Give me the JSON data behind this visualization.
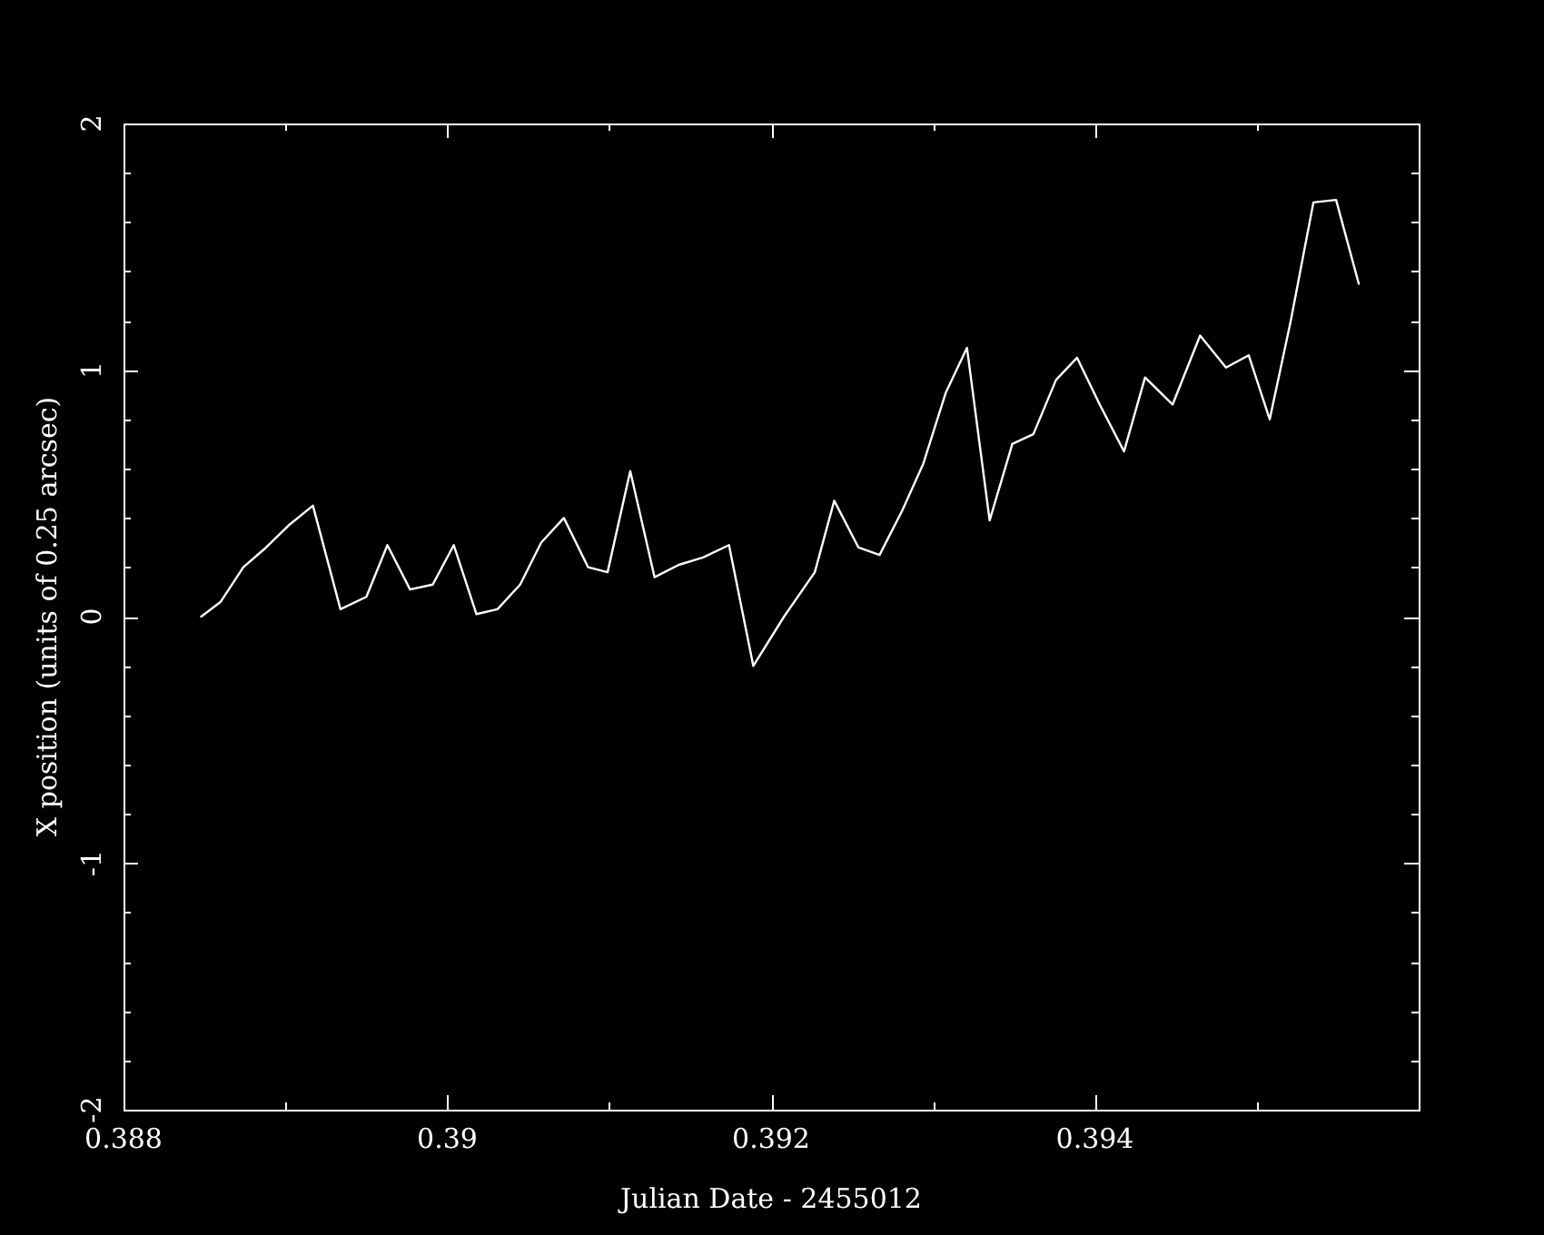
{
  "chart_data": {
    "type": "line",
    "xlabel": "Julian Date - 2455012",
    "ylabel": "X position (units of 0.25 arcsec)",
    "x": [
      0.38848,
      0.3886,
      0.38874,
      0.38888,
      0.38902,
      0.38917,
      0.38934,
      0.3895,
      0.38963,
      0.38977,
      0.38991,
      0.39004,
      0.39018,
      0.39031,
      0.39045,
      0.39058,
      0.39072,
      0.39087,
      0.39099,
      0.39113,
      0.39128,
      0.39143,
      0.39158,
      0.39174,
      0.39189,
      0.39208,
      0.39227,
      0.39239,
      0.39254,
      0.39267,
      0.39281,
      0.39294,
      0.39308,
      0.39321,
      0.39335,
      0.39349,
      0.39362,
      0.39376,
      0.39389,
      0.39403,
      0.39418,
      0.39431,
      0.39448,
      0.39465,
      0.39481,
      0.39495,
      0.39508,
      0.39521,
      0.39535,
      0.39549,
      0.39563
    ],
    "series": [
      {
        "color": "#ffffff",
        "values": [
          0.0,
          0.06,
          0.2,
          0.28,
          0.37,
          0.45,
          0.03,
          0.08,
          0.29,
          0.11,
          0.13,
          0.29,
          0.01,
          0.03,
          0.13,
          0.3,
          0.4,
          0.2,
          0.18,
          0.59,
          0.16,
          0.21,
          0.24,
          0.29,
          -0.2,
          0.0,
          0.18,
          0.47,
          0.28,
          0.25,
          0.43,
          0.62,
          0.91,
          1.09,
          0.39,
          0.7,
          0.74,
          0.96,
          1.05,
          0.86,
          0.67,
          0.97,
          0.86,
          1.14,
          1.01,
          1.06,
          0.8,
          1.2,
          1.68,
          1.69,
          1.35
        ]
      }
    ],
    "xlim": [
      0.388,
      0.396
    ],
    "xticks": [
      0.388,
      {
        "value": 0.389,
        "label": null
      },
      0.39,
      {
        "value": 0.391,
        "label": null
      },
      0.392,
      {
        "value": 0.393,
        "label": null
      },
      0.394,
      {
        "value": 0.395,
        "label": null
      }
    ],
    "ylim": [
      -2,
      2
    ],
    "yticks": [
      -2,
      {
        "value": -1.8,
        "label": null
      },
      {
        "value": -1.6,
        "label": null
      },
      {
        "value": -1.4,
        "label": null
      },
      {
        "value": -1.2,
        "label": null
      },
      -1,
      {
        "value": -0.8,
        "label": null
      },
      {
        "value": -0.6,
        "label": null
      },
      {
        "value": -0.4,
        "label": null
      },
      {
        "value": -0.2,
        "label": null
      },
      0,
      {
        "value": 0.2,
        "label": null
      },
      {
        "value": 0.4,
        "label": null
      },
      {
        "value": 0.6,
        "label": null
      },
      {
        "value": 0.8,
        "label": null
      },
      1,
      {
        "value": 1.2,
        "label": null
      },
      {
        "value": 1.4,
        "label": null
      },
      {
        "value": 1.6,
        "label": null
      },
      {
        "value": 1.8,
        "label": null
      },
      2
    ]
  }
}
